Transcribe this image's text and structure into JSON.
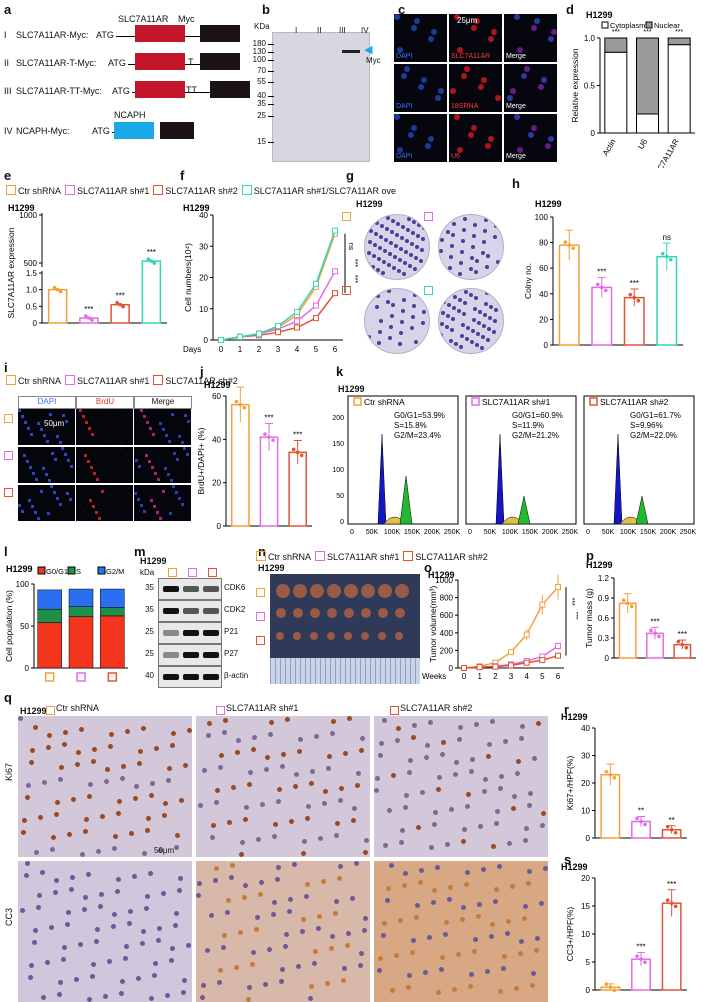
{
  "panels": {
    "a": {
      "letter": "a",
      "constructs": [
        {
          "num": "I",
          "name": "SLC7A11AR-Myc:",
          "atg": "ATG",
          "extra": ""
        },
        {
          "num": "II",
          "name": "SLC7A11AR-T-Myc:",
          "atg": "ATG",
          "extra": "T"
        },
        {
          "num": "III",
          "name": "SLC7A11AR-TT-Myc:",
          "atg": "ATG",
          "extra": "TT"
        },
        {
          "num": "IV",
          "name": "NCAPH-Myc:",
          "atg": "ATG",
          "extra": ""
        }
      ],
      "box_labels": {
        "gene": "SLC7A11AR",
        "tag": "Myc",
        "ncaph": "NCAPH"
      }
    },
    "b": {
      "letter": "b",
      "unit": "KDa",
      "markers": [
        "180",
        "130",
        "100",
        "70",
        "55",
        "40",
        "35",
        "25",
        "15"
      ],
      "lanes": [
        "I",
        "II",
        "III",
        "IV"
      ],
      "arrow_label": "Myc"
    },
    "c": {
      "letter": "c",
      "scale": "25μm",
      "rows": [
        {
          "left": "DAPI",
          "mid": "SLC7A11AR",
          "right": "Merge"
        },
        {
          "left": "DAPI",
          "mid": "18SRNA",
          "right": "Merge"
        },
        {
          "left": "DAPI",
          "mid": "U6",
          "right": "Merge"
        }
      ]
    },
    "e": {
      "letter": "e",
      "cell": "H1299"
    },
    "f": {
      "letter": "f",
      "cell": "H1299"
    },
    "g": {
      "letter": "g",
      "cell": "H1299"
    },
    "h": {
      "letter": "h",
      "cell": "H1299"
    },
    "i": {
      "letter": "i",
      "legend": [
        "Ctr shRNA",
        "SLC7A11AR sh#1",
        "SLC7A11AR sh#2"
      ],
      "cols": [
        "DAPI",
        "BrdU",
        "Merge"
      ],
      "scale": "50μm"
    },
    "j": {
      "letter": "j",
      "cell": "H1299"
    },
    "k": {
      "letter": "k",
      "cell": "H1299",
      "xticks": [
        "0",
        "50K",
        "100K",
        "150K",
        "200K",
        "250K"
      ],
      "plots": [
        {
          "name": "Ctr shRNA",
          "g1": "G0/G1=53.9%",
          "s": "S=15.8%",
          "g2": "G2/M=23.4%"
        },
        {
          "name": "SLC7A11AR sh#1",
          "g1": "G0/G1=60.9%",
          "s": "S=11.9%",
          "g2": "G2/M=21.2%"
        },
        {
          "name": "SLC7A11AR sh#2",
          "g1": "G0/G1=61.7%",
          "s": "S=9.96%",
          "g2": "G2/M=22.0%"
        }
      ]
    },
    "l": {
      "letter": "l",
      "cell": "H1299"
    },
    "m": {
      "letter": "m",
      "cell": "H1299",
      "unit": "kDa",
      "bands": [
        {
          "name": "CDK6",
          "kda": "35"
        },
        {
          "name": "CDK2",
          "kda": "35"
        },
        {
          "name": "P21",
          "kda": "25"
        },
        {
          "name": "P27",
          "kda": "25"
        },
        {
          "name": "β-actin",
          "kda": "40"
        }
      ]
    },
    "n": {
      "letter": "n",
      "cell": "H1299",
      "legend": [
        "Ctr shRNA",
        "SLC7A11AR sh#1",
        "SLC7A11AR sh#2"
      ]
    },
    "o": {
      "letter": "o",
      "cell": "H1299"
    },
    "p": {
      "letter": "p",
      "cell": "H1299"
    },
    "q": {
      "letter": "q",
      "cell": "H1299",
      "cols": [
        "Ctr shRNA",
        "SLC7A11AR sh#1",
        "SLC7A11AR sh#2"
      ],
      "rows": [
        "Ki67",
        "CC3"
      ],
      "scale": "50μm"
    },
    "r": {
      "letter": "r",
      "cell": "H1299"
    },
    "s": {
      "letter": "s",
      "cell": "H1299"
    }
  },
  "colors": {
    "ctr": "#f2a13a",
    "sh1": "#e26be6",
    "sh2": "#e05436",
    "ove": "#37d6b6",
    "g1": "#f2351c",
    "s": "#1f8f4a",
    "g2m": "#2a6ff0"
  },
  "chart_data": [
    {
      "panel": "d",
      "type": "bar",
      "title": "H1299",
      "categories": [
        "Actin",
        "U6",
        "SLC7A11AR"
      ],
      "series": [
        {
          "name": "Cytoplasm",
          "values": [
            0.85,
            0.2,
            0.93
          ]
        },
        {
          "name": "Nuclear",
          "values": [
            0.15,
            0.8,
            0.07
          ]
        }
      ],
      "ylabel": "Relative expression",
      "ylim": [
        0,
        1.0
      ],
      "yticks": [
        "0",
        "0.5",
        "1.0"
      ],
      "sig": [
        "***",
        "***",
        "***"
      ]
    },
    {
      "panel": "e",
      "type": "bar",
      "title": "H1299",
      "categories": [
        "Ctr shRNA",
        "SLC7A11AR sh#1",
        "SLC7A11AR sh#2",
        "SLC7A11AR sh#1/SLC7A11AR ove"
      ],
      "values": [
        1.0,
        0.15,
        0.55,
        520
      ],
      "ylabel": "SLC7A11AR expression",
      "yticks": [
        "0",
        "0.5",
        "1.0",
        "1.5",
        "500",
        "1000"
      ],
      "legend": [
        "Ctr shRNA",
        "SLC7A11AR sh#1",
        "SLC7A11AR sh#2",
        "SLC7A11AR sh#1/SLC7A11AR ove"
      ],
      "sig": [
        "",
        "***",
        "***",
        "***"
      ]
    },
    {
      "panel": "f",
      "type": "line",
      "title": "H1299",
      "x": [
        0,
        1,
        2,
        3,
        4,
        5,
        6
      ],
      "series": [
        {
          "name": "Ctr shRNA",
          "values": [
            0,
            1,
            2,
            4,
            8,
            17,
            34
          ]
        },
        {
          "name": "SLC7A11AR sh#1",
          "values": [
            0,
            1,
            2,
            3.5,
            6,
            11,
            22
          ]
        },
        {
          "name": "SLC7A11AR sh#2",
          "values": [
            0,
            1,
            1.5,
            2.5,
            4,
            7,
            15
          ]
        },
        {
          "name": "SLC7A11AR sh#1/SLC7A11AR ove",
          "values": [
            0,
            1,
            2,
            4.5,
            9,
            18,
            35
          ]
        }
      ],
      "xlabel": "Days",
      "ylabel": "Cell numbers(10⁴)",
      "ylim": [
        0,
        40
      ],
      "yticks": [
        "0",
        "10",
        "20",
        "30",
        "40"
      ],
      "sig": [
        "ns",
        "***",
        "***"
      ]
    },
    {
      "panel": "h",
      "type": "bar",
      "title": "H1299",
      "categories": [
        "Ctr shRNA",
        "SLC7A11AR sh#1",
        "SLC7A11AR sh#2",
        "SLC7A11AR sh#1/SLC7A11AR ove"
      ],
      "values": [
        78,
        45,
        37,
        69
      ],
      "ylabel": "Colny no.",
      "ylim": [
        0,
        100
      ],
      "yticks": [
        "0",
        "20",
        "40",
        "60",
        "80",
        "100"
      ],
      "sig": [
        "",
        "***",
        "***",
        "ns"
      ]
    },
    {
      "panel": "j",
      "type": "bar",
      "title": "H1299",
      "categories": [
        "Ctr shRNA",
        "SLC7A11AR sh#1",
        "SLC7A11AR sh#2"
      ],
      "values": [
        56,
        41,
        34
      ],
      "ylabel": "BrdU+/DAPI+ (%)",
      "ylim": [
        0,
        60
      ],
      "yticks": [
        "0",
        "20",
        "40",
        "60"
      ],
      "sig": [
        "",
        "***",
        "***"
      ]
    },
    {
      "panel": "l",
      "type": "bar",
      "title": "H1299",
      "categories": [
        "Ctr shRNA",
        "SLC7A11AR sh#1",
        "SLC7A11AR sh#2"
      ],
      "series": [
        {
          "name": "G0/G1",
          "values": [
            54,
            61,
            62
          ]
        },
        {
          "name": "S",
          "values": [
            16,
            12,
            10
          ]
        },
        {
          "name": "G2/M",
          "values": [
            23,
            21,
            22
          ]
        }
      ],
      "ylabel": "Cell population (%)",
      "ylim": [
        0,
        100
      ],
      "yticks": [
        "0",
        "50",
        "100"
      ]
    },
    {
      "panel": "o",
      "type": "line",
      "title": "H1299",
      "x": [
        0,
        1,
        2,
        3,
        4,
        5,
        6
      ],
      "series": [
        {
          "name": "Ctr shRNA",
          "values": [
            0,
            20,
            60,
            180,
            380,
            720,
            920
          ]
        },
        {
          "name": "SLC7A11AR sh#1",
          "values": [
            0,
            10,
            20,
            40,
            80,
            130,
            250
          ]
        },
        {
          "name": "SLC7A11AR sh#2",
          "values": [
            0,
            10,
            15,
            30,
            60,
            90,
            140
          ]
        }
      ],
      "xlabel": "Weeks",
      "ylabel": "Tumor volume(mm³)",
      "ylim": [
        0,
        1000
      ],
      "yticks": [
        "0",
        "200",
        "400",
        "600",
        "800",
        "1000"
      ],
      "sig": [
        "***",
        "***"
      ]
    },
    {
      "panel": "p",
      "type": "bar",
      "title": "H1299",
      "categories": [
        "Ctr shRNA",
        "SLC7A11AR sh#1",
        "SLC7A11AR sh#2"
      ],
      "values": [
        0.82,
        0.37,
        0.2
      ],
      "ylabel": "Tumor mass (g)",
      "ylim": [
        0,
        1.2
      ],
      "yticks": [
        "0",
        "0.3",
        "0.6",
        "0.9",
        "1.2"
      ],
      "sig": [
        "",
        "***",
        "***"
      ]
    },
    {
      "panel": "r",
      "type": "bar",
      "title": "H1299",
      "categories": [
        "Ctr shRNA",
        "SLC7A11AR sh#1",
        "SLC7A11AR sh#2"
      ],
      "values": [
        23,
        6,
        3
      ],
      "ylabel": "Ki67+/HPF(%)",
      "ylim": [
        0,
        40
      ],
      "yticks": [
        "0",
        "10",
        "20",
        "30",
        "40"
      ],
      "sig": [
        "",
        "**",
        "**"
      ]
    },
    {
      "panel": "s",
      "type": "bar",
      "title": "H1299",
      "categories": [
        "Ctr shRNA",
        "SLC7A11AR sh#1",
        "SLC7A11AR sh#2"
      ],
      "values": [
        0.5,
        5.5,
        15.5
      ],
      "ylabel": "CC3+/HPF(%)",
      "ylim": [
        0,
        20
      ],
      "yticks": [
        "0",
        "5",
        "10",
        "15",
        "20"
      ],
      "sig": [
        "",
        "***",
        "***"
      ]
    }
  ]
}
